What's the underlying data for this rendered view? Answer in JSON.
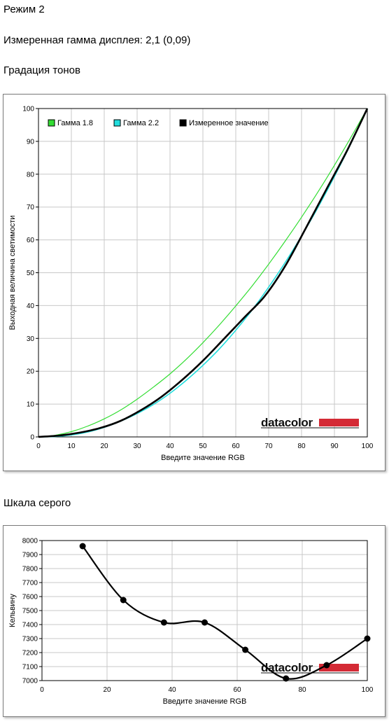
{
  "page": {
    "mode_title": "Режим 2",
    "gamma_line": "Измеренная гамма дисплея: 2,1 (0,09)",
    "tone_heading": "Градация тонов",
    "gray_heading": "Шкала серого"
  },
  "logo_text": "datacolor",
  "colors": {
    "gamma18": "#33dd33",
    "gamma22": "#22dddd",
    "measured": "#000000",
    "grid": "#c8c8c8",
    "logo_bar": "#d42a35"
  },
  "chart_data": [
    {
      "type": "line",
      "xlabel": "Введите значение RGB",
      "ylabel": "Выходная величина светимости",
      "xlim": [
        0,
        100
      ],
      "ylim": [
        0,
        100
      ],
      "xticks": [
        "0",
        "10",
        "20",
        "30",
        "40",
        "50",
        "60",
        "70",
        "80",
        "90",
        "100"
      ],
      "yticks": [
        "0",
        "10",
        "20",
        "30",
        "40",
        "50",
        "60",
        "70",
        "80",
        "90",
        "100"
      ],
      "grid": true,
      "legend_position": "top-left",
      "series": [
        {
          "name": "Гамма 1.8",
          "color": "#33dd33",
          "x": [
            0,
            5,
            10,
            15,
            20,
            25,
            30,
            35,
            40,
            45,
            50,
            55,
            60,
            65,
            70,
            75,
            80,
            85,
            90,
            95,
            100
          ],
          "y": [
            0,
            0.5,
            1.6,
            3.3,
            5.5,
            8.2,
            11.5,
            15.2,
            19.2,
            23.7,
            28.7,
            34.1,
            39.9,
            46.0,
            52.6,
            59.6,
            66.9,
            74.6,
            82.7,
            91.2,
            100
          ]
        },
        {
          "name": "Гамма 2.2",
          "color": "#22dddd",
          "x": [
            0,
            5,
            10,
            15,
            20,
            25,
            30,
            35,
            40,
            45,
            50,
            55,
            60,
            65,
            70,
            75,
            80,
            85,
            90,
            95,
            100
          ],
          "y": [
            0,
            0.1,
            0.6,
            1.5,
            2.9,
            4.8,
            7.1,
            9.9,
            13.3,
            17.3,
            21.8,
            26.8,
            32.5,
            38.7,
            45.6,
            53.1,
            61.2,
            69.9,
            79.3,
            89.3,
            100
          ]
        },
        {
          "name": "Измеренное значение",
          "color": "#000000",
          "x": [
            0,
            6.25,
            12.5,
            18.75,
            25,
            31.25,
            37.5,
            43.75,
            50,
            56.25,
            62.5,
            68.75,
            75,
            81.25,
            87.5,
            93.75,
            100
          ],
          "y": [
            0,
            0.4,
            1.3,
            2.7,
            4.9,
            8.2,
            12.3,
            17.4,
            23.2,
            29.7,
            36.3,
            42.8,
            52.0,
            63.5,
            75.3,
            87.0,
            100
          ]
        }
      ]
    },
    {
      "type": "line",
      "xlabel": "Введите значение RGB",
      "ylabel": "Кельвину",
      "xlim": [
        0,
        100
      ],
      "ylim": [
        7000,
        8000
      ],
      "xticks": [
        "0",
        "20",
        "40",
        "60",
        "80",
        "100"
      ],
      "yticks": [
        "7000",
        "7100",
        "7200",
        "7300",
        "7400",
        "7500",
        "7600",
        "7700",
        "7800",
        "7900",
        "8000"
      ],
      "grid": true,
      "series": [
        {
          "x": [
            12.5,
            25,
            37.5,
            50,
            62.5,
            75,
            87.5,
            100
          ],
          "y": [
            7960,
            7575,
            7415,
            7415,
            7220,
            7015,
            7110,
            7300
          ]
        }
      ]
    }
  ]
}
